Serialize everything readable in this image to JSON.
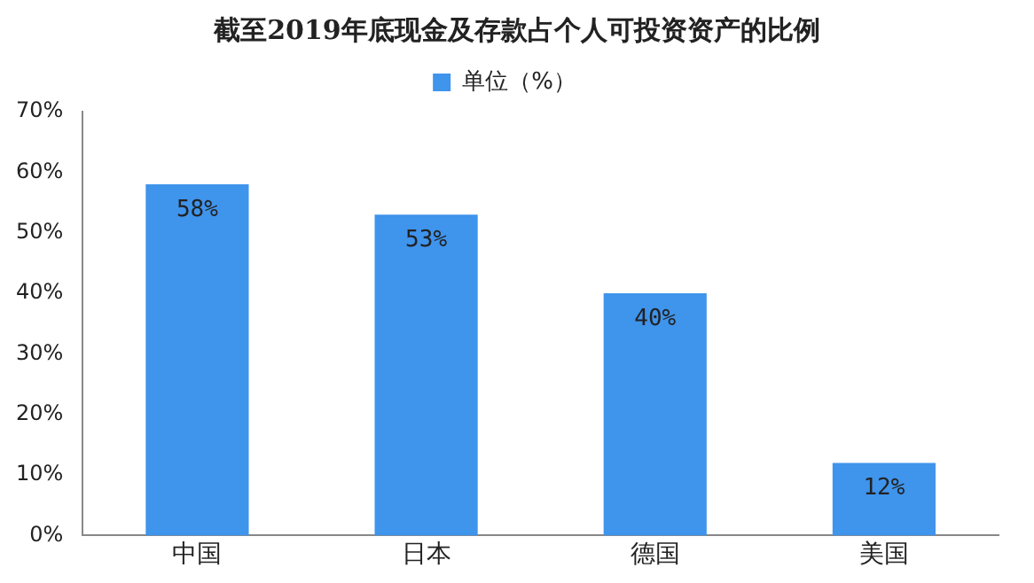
{
  "chart_data": {
    "type": "bar",
    "title": "截至2019年底现金及存款占个人可投资资产的比例",
    "categories": [
      "中国",
      "日本",
      "德国",
      "美国"
    ],
    "series": [
      {
        "name": "单位（%）",
        "color": "#3f94ec",
        "values": [
          58,
          53,
          40,
          12
        ],
        "value_labels": [
          "58%",
          "53%",
          "40%",
          "12%"
        ]
      }
    ],
    "ylim": [
      0,
      70
    ],
    "yticks": [
      {
        "value": 0,
        "label": "0%"
      },
      {
        "value": 10,
        "label": "10%"
      },
      {
        "value": 20,
        "label": "20%"
      },
      {
        "value": 30,
        "label": "30%"
      },
      {
        "value": 40,
        "label": "40%"
      },
      {
        "value": 50,
        "label": "50%"
      },
      {
        "value": 60,
        "label": "60%"
      },
      {
        "value": 70,
        "label": "70%"
      }
    ],
    "grid": false,
    "legend": "top"
  }
}
